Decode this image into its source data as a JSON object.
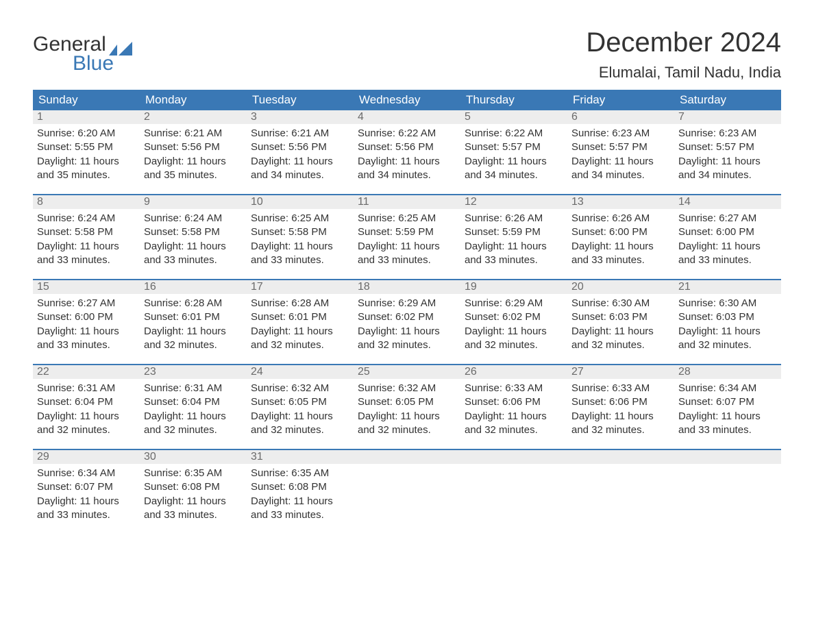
{
  "logo": {
    "word1": "General",
    "word2": "Blue",
    "flag_color": "#3a78b5"
  },
  "title": "December 2024",
  "location": "Elumalai, Tamil Nadu, India",
  "colors": {
    "header_bg": "#3a78b5",
    "header_text": "#ffffff",
    "daynum_bg": "#ededed",
    "daynum_text": "#6a6a6a",
    "body_text": "#333333",
    "rule": "#3a78b5"
  },
  "dow": [
    "Sunday",
    "Monday",
    "Tuesday",
    "Wednesday",
    "Thursday",
    "Friday",
    "Saturday"
  ],
  "weeks": [
    [
      {
        "n": "1",
        "sr": "6:20 AM",
        "ss": "5:55 PM",
        "dl": "11 hours",
        "dl2": "and 35 minutes."
      },
      {
        "n": "2",
        "sr": "6:21 AM",
        "ss": "5:56 PM",
        "dl": "11 hours",
        "dl2": "and 35 minutes."
      },
      {
        "n": "3",
        "sr": "6:21 AM",
        "ss": "5:56 PM",
        "dl": "11 hours",
        "dl2": "and 34 minutes."
      },
      {
        "n": "4",
        "sr": "6:22 AM",
        "ss": "5:56 PM",
        "dl": "11 hours",
        "dl2": "and 34 minutes."
      },
      {
        "n": "5",
        "sr": "6:22 AM",
        "ss": "5:57 PM",
        "dl": "11 hours",
        "dl2": "and 34 minutes."
      },
      {
        "n": "6",
        "sr": "6:23 AM",
        "ss": "5:57 PM",
        "dl": "11 hours",
        "dl2": "and 34 minutes."
      },
      {
        "n": "7",
        "sr": "6:23 AM",
        "ss": "5:57 PM",
        "dl": "11 hours",
        "dl2": "and 34 minutes."
      }
    ],
    [
      {
        "n": "8",
        "sr": "6:24 AM",
        "ss": "5:58 PM",
        "dl": "11 hours",
        "dl2": "and 33 minutes."
      },
      {
        "n": "9",
        "sr": "6:24 AM",
        "ss": "5:58 PM",
        "dl": "11 hours",
        "dl2": "and 33 minutes."
      },
      {
        "n": "10",
        "sr": "6:25 AM",
        "ss": "5:58 PM",
        "dl": "11 hours",
        "dl2": "and 33 minutes."
      },
      {
        "n": "11",
        "sr": "6:25 AM",
        "ss": "5:59 PM",
        "dl": "11 hours",
        "dl2": "and 33 minutes."
      },
      {
        "n": "12",
        "sr": "6:26 AM",
        "ss": "5:59 PM",
        "dl": "11 hours",
        "dl2": "and 33 minutes."
      },
      {
        "n": "13",
        "sr": "6:26 AM",
        "ss": "6:00 PM",
        "dl": "11 hours",
        "dl2": "and 33 minutes."
      },
      {
        "n": "14",
        "sr": "6:27 AM",
        "ss": "6:00 PM",
        "dl": "11 hours",
        "dl2": "and 33 minutes."
      }
    ],
    [
      {
        "n": "15",
        "sr": "6:27 AM",
        "ss": "6:00 PM",
        "dl": "11 hours",
        "dl2": "and 33 minutes."
      },
      {
        "n": "16",
        "sr": "6:28 AM",
        "ss": "6:01 PM",
        "dl": "11 hours",
        "dl2": "and 32 minutes."
      },
      {
        "n": "17",
        "sr": "6:28 AM",
        "ss": "6:01 PM",
        "dl": "11 hours",
        "dl2": "and 32 minutes."
      },
      {
        "n": "18",
        "sr": "6:29 AM",
        "ss": "6:02 PM",
        "dl": "11 hours",
        "dl2": "and 32 minutes."
      },
      {
        "n": "19",
        "sr": "6:29 AM",
        "ss": "6:02 PM",
        "dl": "11 hours",
        "dl2": "and 32 minutes."
      },
      {
        "n": "20",
        "sr": "6:30 AM",
        "ss": "6:03 PM",
        "dl": "11 hours",
        "dl2": "and 32 minutes."
      },
      {
        "n": "21",
        "sr": "6:30 AM",
        "ss": "6:03 PM",
        "dl": "11 hours",
        "dl2": "and 32 minutes."
      }
    ],
    [
      {
        "n": "22",
        "sr": "6:31 AM",
        "ss": "6:04 PM",
        "dl": "11 hours",
        "dl2": "and 32 minutes."
      },
      {
        "n": "23",
        "sr": "6:31 AM",
        "ss": "6:04 PM",
        "dl": "11 hours",
        "dl2": "and 32 minutes."
      },
      {
        "n": "24",
        "sr": "6:32 AM",
        "ss": "6:05 PM",
        "dl": "11 hours",
        "dl2": "and 32 minutes."
      },
      {
        "n": "25",
        "sr": "6:32 AM",
        "ss": "6:05 PM",
        "dl": "11 hours",
        "dl2": "and 32 minutes."
      },
      {
        "n": "26",
        "sr": "6:33 AM",
        "ss": "6:06 PM",
        "dl": "11 hours",
        "dl2": "and 32 minutes."
      },
      {
        "n": "27",
        "sr": "6:33 AM",
        "ss": "6:06 PM",
        "dl": "11 hours",
        "dl2": "and 32 minutes."
      },
      {
        "n": "28",
        "sr": "6:34 AM",
        "ss": "6:07 PM",
        "dl": "11 hours",
        "dl2": "and 33 minutes."
      }
    ],
    [
      {
        "n": "29",
        "sr": "6:34 AM",
        "ss": "6:07 PM",
        "dl": "11 hours",
        "dl2": "and 33 minutes."
      },
      {
        "n": "30",
        "sr": "6:35 AM",
        "ss": "6:08 PM",
        "dl": "11 hours",
        "dl2": "and 33 minutes."
      },
      {
        "n": "31",
        "sr": "6:35 AM",
        "ss": "6:08 PM",
        "dl": "11 hours",
        "dl2": "and 33 minutes."
      },
      {
        "empty": true
      },
      {
        "empty": true
      },
      {
        "empty": true
      },
      {
        "empty": true
      }
    ]
  ],
  "labels": {
    "sunrise": "Sunrise: ",
    "sunset": "Sunset: ",
    "daylight": "Daylight: "
  }
}
